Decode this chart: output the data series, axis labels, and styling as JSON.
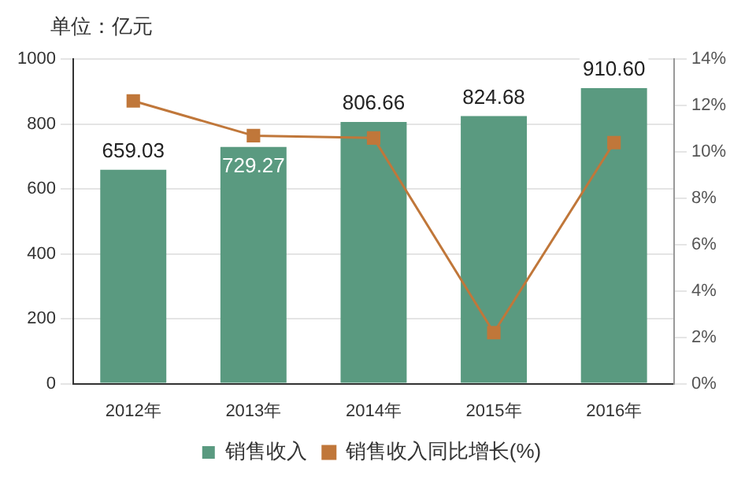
{
  "chart_data": {
    "type": "bar",
    "ylabel": "单位：亿元",
    "categories": [
      "2012年",
      "2013年",
      "2014年",
      "2015年",
      "2016年"
    ],
    "series": [
      {
        "name": "销售收入",
        "color": "#5a9a80",
        "values": [
          659.03,
          729.27,
          806.66,
          824.68,
          910.6
        ],
        "value_labels": [
          "659.03",
          "729.27",
          "806.66",
          "824.68",
          "910.60"
        ]
      },
      {
        "name": "销售收入同比增长(%)",
        "type": "line",
        "axis": "y2",
        "color": "#c0773a",
        "values": [
          12.2,
          10.7,
          10.6,
          2.2,
          10.4
        ]
      }
    ],
    "ylim": [
      0,
      1000
    ],
    "yticks": [
      0,
      200,
      400,
      600,
      800,
      1000
    ],
    "y2lim": [
      0,
      14
    ],
    "y2ticks": [
      {
        "value": 0,
        "label": "0%"
      },
      {
        "value": 2,
        "label": "2%"
      },
      {
        "value": 4,
        "label": "4%"
      },
      {
        "value": 6,
        "label": "6%"
      },
      {
        "value": 8,
        "label": "8%"
      },
      {
        "value": 10,
        "label": "10%"
      },
      {
        "value": 12,
        "label": "12%"
      },
      {
        "value": 14,
        "label": "14%"
      }
    ],
    "grid": "y",
    "legend": "bottom",
    "marker": "square",
    "line_style": "solid"
  }
}
